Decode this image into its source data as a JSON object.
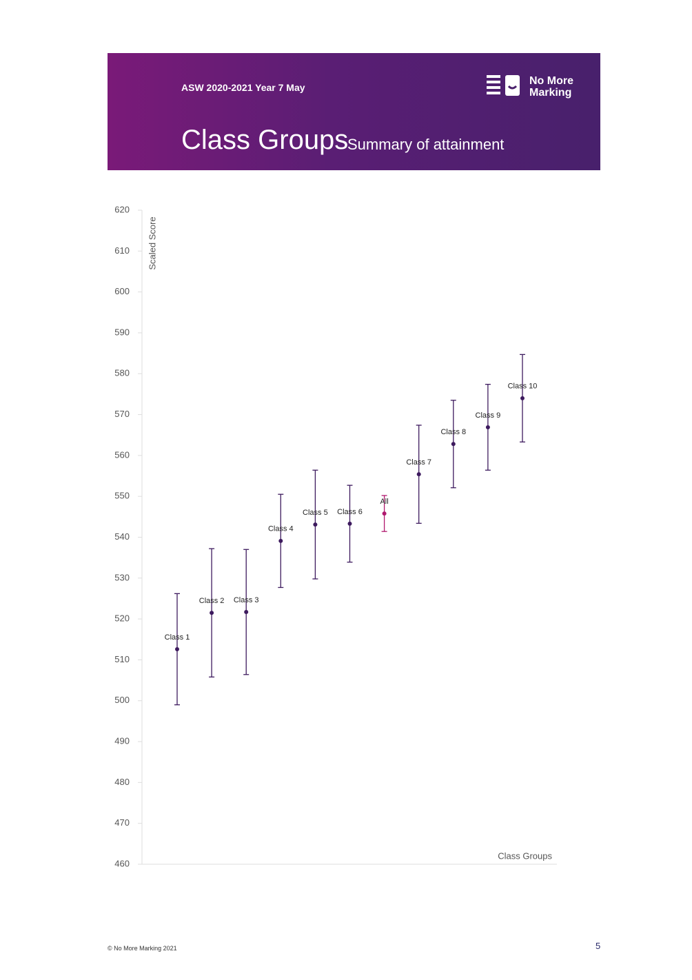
{
  "header": {
    "subtitle_top": "ASW 2020-2021 Year 7 May",
    "title": "Class Groups",
    "subtitle": "Summary of attainment",
    "logo_line1": "No More",
    "logo_line2": "Marking"
  },
  "chart_data": {
    "type": "errorbar",
    "y_label": "Scaled Score",
    "x_label": "Class Groups",
    "categories": [
      "Class 1",
      "Class 2",
      "Class 3",
      "Class 4",
      "Class 5",
      "Class 6",
      "All",
      "Class 7",
      "Class 8",
      "Class 9",
      "Class 10"
    ],
    "values": [
      512.6,
      521.5,
      521.7,
      539.1,
      543.1,
      543.3,
      545.8,
      555.4,
      562.8,
      566.9,
      574.0
    ],
    "errors": [
      13.6,
      15.7,
      15.3,
      11.4,
      13.3,
      9.4,
      4.4,
      12.0,
      10.7,
      10.5,
      10.7
    ],
    "colors": [
      "#3d1a5e",
      "#3d1a5e",
      "#3d1a5e",
      "#3d1a5e",
      "#3d1a5e",
      "#3d1a5e",
      "#b0186e",
      "#3d1a5e",
      "#3d1a5e",
      "#3d1a5e",
      "#3d1a5e"
    ],
    "ylim": [
      460,
      620
    ],
    "yticks": [
      460,
      470,
      480,
      490,
      500,
      510,
      520,
      530,
      540,
      550,
      560,
      570,
      580,
      590,
      600,
      610,
      620
    ]
  },
  "footer": {
    "copyright": "© No More Marking 2021",
    "page_number": "5"
  }
}
